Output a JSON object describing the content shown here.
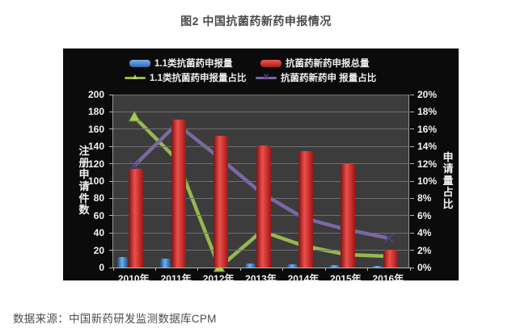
{
  "page": {
    "title": "图2 中国抗菌药新药申报情况",
    "source": "数据来源：中国新药研发监测数据库CPM"
  },
  "chart_data": {
    "type": "bar+line",
    "legend_position": "top",
    "grid": true,
    "categories": [
      "2010年",
      "2011年",
      "2012年",
      "2013年",
      "2014年",
      "2015年",
      "2016年"
    ],
    "series": [
      {
        "name": "1.1类抗菌药申报量",
        "type": "bar",
        "axis": "left",
        "color": "#4f8fd0",
        "values": [
          12,
          10,
          0,
          5,
          4,
          3,
          2
        ]
      },
      {
        "name": "抗菌药新药申报总量",
        "type": "bar",
        "axis": "left",
        "color": "#d23230",
        "values": [
          114,
          171,
          152,
          141,
          135,
          120,
          21
        ]
      },
      {
        "name": "1.1类抗菌药申报量占比",
        "type": "line",
        "axis": "right",
        "color": "#96b84d",
        "marker": "triangle",
        "values": [
          17.4,
          12.5,
          0,
          4.2,
          2.5,
          1.5,
          1.3
        ]
      },
      {
        "name": "抗菌药新药申 报量占比",
        "type": "line",
        "axis": "right",
        "color": "#7c67a5",
        "marker": "x",
        "values": [
          11.8,
          16.6,
          12.7,
          8.6,
          5.7,
          4.4,
          3.4
        ]
      }
    ],
    "left_axis": {
      "title": "注册申请件数",
      "min": 0,
      "max": 200,
      "ticks": [
        "200",
        "180",
        "160",
        "140",
        "120",
        "100",
        "80",
        "60",
        "40",
        "20",
        "0"
      ]
    },
    "right_axis": {
      "title": "申请量占比",
      "min": 0,
      "max": 20,
      "ticks": [
        "20%",
        "18%",
        "16%",
        "14%",
        "12%",
        "10%",
        "8%",
        "6%",
        "4%",
        "2%",
        "0%"
      ]
    }
  }
}
